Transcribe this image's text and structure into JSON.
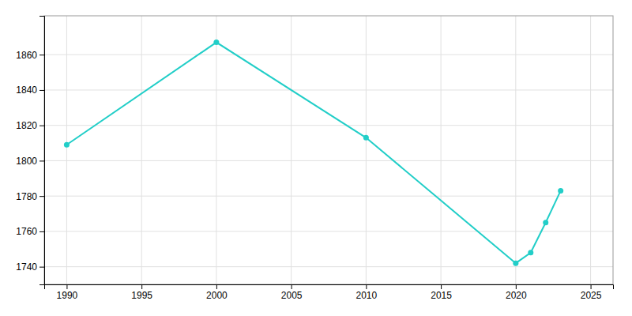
{
  "chart_data": {
    "type": "line",
    "x": [
      1990,
      2000,
      2010,
      2020,
      2021,
      2022,
      2023
    ],
    "values": [
      1809,
      1867,
      1813,
      1742,
      1748,
      1765,
      1783
    ],
    "color": "#22CEC8",
    "marker": "circle",
    "grid": true,
    "xlim": [
      1988.5,
      2026.5
    ],
    "ylim": [
      1730,
      1882
    ],
    "xticks": [
      1990,
      1995,
      2000,
      2005,
      2010,
      2015,
      2020,
      2025
    ],
    "yticks": [
      1740,
      1760,
      1780,
      1800,
      1820,
      1840,
      1860
    ]
  }
}
